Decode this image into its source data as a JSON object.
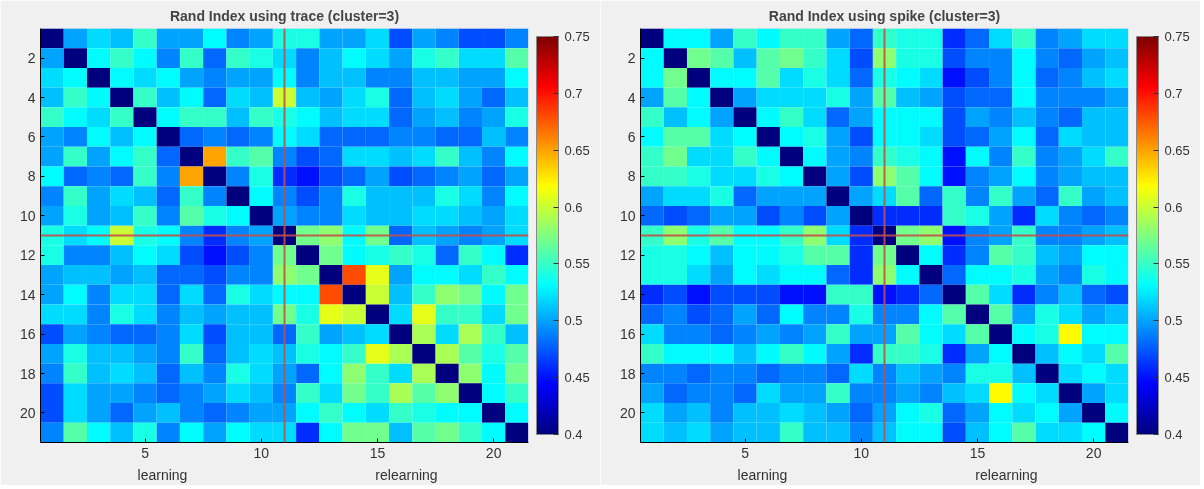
{
  "chart_data": [
    {
      "type": "heatmap",
      "title": "Rand Index using trace (cluster=3)",
      "categories": [
        null,
        null,
        null,
        null,
        "5",
        null,
        null,
        null,
        null,
        "10",
        null,
        null,
        null,
        null,
        "15",
        null,
        null,
        null,
        null,
        "20",
        null
      ],
      "y_categories": [
        null,
        "2",
        null,
        "4",
        null,
        "6",
        null,
        "8",
        null,
        "10",
        null,
        "12",
        null,
        "14",
        null,
        "16",
        null,
        "18",
        null,
        "20",
        null
      ],
      "clim": [
        0.4,
        0.75
      ],
      "cticks": [
        0.4,
        0.45,
        0.5,
        0.55,
        0.6,
        0.65,
        0.7,
        0.75
      ],
      "annotations": [
        "learning",
        "relearning"
      ],
      "cells": [
        [
          0.4,
          0.5,
          0.52,
          0.51,
          0.55,
          0.5,
          0.5,
          0.53,
          0.49,
          0.5,
          0.54,
          0.54,
          0.5,
          0.5,
          0.52,
          0.47,
          0.5,
          0.49,
          0.47,
          0.47,
          0.49
        ],
        [
          0.5,
          0.4,
          0.53,
          0.55,
          0.53,
          0.49,
          0.55,
          0.48,
          0.55,
          0.54,
          0.52,
          0.49,
          0.51,
          0.53,
          0.52,
          0.5,
          0.54,
          0.55,
          0.52,
          0.52,
          0.56
        ],
        [
          0.52,
          0.53,
          0.4,
          0.53,
          0.52,
          0.53,
          0.5,
          0.49,
          0.5,
          0.5,
          0.53,
          0.49,
          0.51,
          0.51,
          0.49,
          0.49,
          0.51,
          0.51,
          0.5,
          0.5,
          0.53
        ],
        [
          0.51,
          0.55,
          0.53,
          0.4,
          0.55,
          0.51,
          0.53,
          0.48,
          0.52,
          0.51,
          0.6,
          0.51,
          0.5,
          0.52,
          0.54,
          0.48,
          0.51,
          0.52,
          0.5,
          0.48,
          0.51
        ],
        [
          0.55,
          0.53,
          0.52,
          0.55,
          0.4,
          0.53,
          0.55,
          0.55,
          0.51,
          0.55,
          0.54,
          0.53,
          0.51,
          0.52,
          0.52,
          0.48,
          0.5,
          0.51,
          0.49,
          0.5,
          0.54
        ],
        [
          0.5,
          0.49,
          0.53,
          0.51,
          0.53,
          0.4,
          0.48,
          0.49,
          0.48,
          0.49,
          0.53,
          0.52,
          0.48,
          0.48,
          0.48,
          0.49,
          0.49,
          0.48,
          0.48,
          0.51,
          0.49
        ],
        [
          0.5,
          0.55,
          0.5,
          0.53,
          0.55,
          0.48,
          0.4,
          0.65,
          0.55,
          0.56,
          0.49,
          0.47,
          0.48,
          0.52,
          0.52,
          0.51,
          0.52,
          0.55,
          0.51,
          0.49,
          0.53
        ],
        [
          0.53,
          0.48,
          0.49,
          0.48,
          0.55,
          0.49,
          0.65,
          0.4,
          0.49,
          0.54,
          0.46,
          0.45,
          0.47,
          0.48,
          0.5,
          0.47,
          0.48,
          0.49,
          0.5,
          0.48,
          0.5
        ],
        [
          0.49,
          0.55,
          0.5,
          0.52,
          0.51,
          0.48,
          0.55,
          0.49,
          0.4,
          0.53,
          0.49,
          0.47,
          0.49,
          0.54,
          0.51,
          0.51,
          0.51,
          0.54,
          0.52,
          0.49,
          0.53
        ],
        [
          0.5,
          0.54,
          0.5,
          0.51,
          0.55,
          0.49,
          0.56,
          0.54,
          0.53,
          0.4,
          0.5,
          0.49,
          0.49,
          0.52,
          0.51,
          0.51,
          0.52,
          0.52,
          0.51,
          0.5,
          0.52
        ],
        [
          0.54,
          0.52,
          0.53,
          0.6,
          0.54,
          0.53,
          0.49,
          0.46,
          0.49,
          0.5,
          0.4,
          0.57,
          0.58,
          0.53,
          0.57,
          0.48,
          0.51,
          0.5,
          0.49,
          0.5,
          0.52
        ],
        [
          0.54,
          0.49,
          0.49,
          0.51,
          0.53,
          0.52,
          0.47,
          0.45,
          0.47,
          0.49,
          0.57,
          0.4,
          0.57,
          0.53,
          0.54,
          0.55,
          0.54,
          0.48,
          0.55,
          0.53,
          0.46
        ],
        [
          0.5,
          0.51,
          0.51,
          0.5,
          0.51,
          0.48,
          0.48,
          0.47,
          0.49,
          0.49,
          0.58,
          0.57,
          0.4,
          0.68,
          0.61,
          0.5,
          0.53,
          0.53,
          0.52,
          0.55,
          0.53
        ],
        [
          0.5,
          0.53,
          0.49,
          0.52,
          0.52,
          0.48,
          0.52,
          0.48,
          0.54,
          0.52,
          0.53,
          0.53,
          0.68,
          0.4,
          0.6,
          0.51,
          0.55,
          0.58,
          0.57,
          0.53,
          0.57
        ],
        [
          0.52,
          0.52,
          0.49,
          0.54,
          0.52,
          0.49,
          0.51,
          0.5,
          0.51,
          0.51,
          0.57,
          0.54,
          0.61,
          0.6,
          0.4,
          0.52,
          0.61,
          0.55,
          0.55,
          0.52,
          0.57
        ],
        [
          0.47,
          0.5,
          0.49,
          0.48,
          0.48,
          0.49,
          0.52,
          0.47,
          0.51,
          0.51,
          0.48,
          0.55,
          0.5,
          0.51,
          0.52,
          0.4,
          0.59,
          0.52,
          0.59,
          0.55,
          0.51
        ],
        [
          0.5,
          0.54,
          0.51,
          0.51,
          0.5,
          0.49,
          0.55,
          0.48,
          0.51,
          0.52,
          0.51,
          0.54,
          0.53,
          0.55,
          0.61,
          0.59,
          0.4,
          0.59,
          0.56,
          0.54,
          0.56
        ],
        [
          0.49,
          0.55,
          0.51,
          0.52,
          0.51,
          0.48,
          0.51,
          0.49,
          0.54,
          0.52,
          0.5,
          0.48,
          0.53,
          0.58,
          0.55,
          0.52,
          0.59,
          0.4,
          0.58,
          0.53,
          0.57
        ],
        [
          0.47,
          0.52,
          0.5,
          0.5,
          0.49,
          0.48,
          0.49,
          0.5,
          0.52,
          0.51,
          0.49,
          0.55,
          0.52,
          0.57,
          0.55,
          0.59,
          0.56,
          0.58,
          0.4,
          0.53,
          0.55
        ],
        [
          0.47,
          0.52,
          0.5,
          0.48,
          0.5,
          0.51,
          0.49,
          0.48,
          0.49,
          0.5,
          0.5,
          0.53,
          0.55,
          0.53,
          0.52,
          0.55,
          0.54,
          0.53,
          0.53,
          0.4,
          0.53
        ],
        [
          0.49,
          0.56,
          0.53,
          0.51,
          0.54,
          0.49,
          0.53,
          0.5,
          0.53,
          0.52,
          0.52,
          0.46,
          0.53,
          0.57,
          0.57,
          0.51,
          0.56,
          0.57,
          0.55,
          0.53,
          0.4
        ]
      ]
    },
    {
      "type": "heatmap",
      "title": "Rand Index using spike (cluster=3)",
      "categories": [
        null,
        null,
        null,
        null,
        "5",
        null,
        null,
        null,
        null,
        "10",
        null,
        null,
        null,
        null,
        "15",
        null,
        null,
        null,
        null,
        "20",
        null
      ],
      "y_categories": [
        null,
        "2",
        null,
        "4",
        null,
        "6",
        null,
        "8",
        null,
        "10",
        null,
        "12",
        null,
        "14",
        null,
        "16",
        null,
        "18",
        null,
        "20",
        null
      ],
      "clim": [
        0.4,
        0.75
      ],
      "cticks": [
        0.4,
        0.45,
        0.5,
        0.55,
        0.6,
        0.65,
        0.7,
        0.75
      ],
      "annotations": [
        "learning",
        "relearning"
      ],
      "cells": [
        [
          0.4,
          0.53,
          0.53,
          0.5,
          0.55,
          0.53,
          0.55,
          0.55,
          0.5,
          0.48,
          0.55,
          0.54,
          0.54,
          0.46,
          0.48,
          0.52,
          0.55,
          0.49,
          0.5,
          0.52,
          0.52
        ],
        [
          0.53,
          0.4,
          0.57,
          0.56,
          0.51,
          0.56,
          0.57,
          0.55,
          0.52,
          0.47,
          0.58,
          0.54,
          0.54,
          0.47,
          0.49,
          0.49,
          0.53,
          0.49,
          0.48,
          0.5,
          0.51
        ],
        [
          0.53,
          0.57,
          0.4,
          0.53,
          0.53,
          0.56,
          0.52,
          0.54,
          0.52,
          0.48,
          0.54,
          0.53,
          0.52,
          0.45,
          0.47,
          0.49,
          0.53,
          0.48,
          0.49,
          0.51,
          0.52
        ],
        [
          0.5,
          0.56,
          0.53,
          0.4,
          0.5,
          0.52,
          0.52,
          0.52,
          0.54,
          0.5,
          0.56,
          0.51,
          0.5,
          0.47,
          0.48,
          0.48,
          0.53,
          0.49,
          0.49,
          0.49,
          0.5
        ],
        [
          0.55,
          0.51,
          0.53,
          0.5,
          0.4,
          0.53,
          0.55,
          0.52,
          0.48,
          0.5,
          0.53,
          0.53,
          0.53,
          0.47,
          0.5,
          0.49,
          0.51,
          0.49,
          0.48,
          0.51,
          0.51
        ],
        [
          0.53,
          0.56,
          0.56,
          0.52,
          0.53,
          0.4,
          0.53,
          0.54,
          0.5,
          0.47,
          0.53,
          0.53,
          0.52,
          0.47,
          0.48,
          0.5,
          0.53,
          0.48,
          0.52,
          0.51,
          0.51
        ],
        [
          0.55,
          0.57,
          0.52,
          0.52,
          0.55,
          0.53,
          0.4,
          0.53,
          0.5,
          0.49,
          0.55,
          0.54,
          0.53,
          0.45,
          0.53,
          0.49,
          0.55,
          0.49,
          0.5,
          0.52,
          0.55
        ],
        [
          0.55,
          0.55,
          0.54,
          0.52,
          0.52,
          0.54,
          0.53,
          0.4,
          0.5,
          0.47,
          0.58,
          0.56,
          0.53,
          0.45,
          0.49,
          0.5,
          0.53,
          0.49,
          0.5,
          0.51,
          0.51
        ],
        [
          0.5,
          0.52,
          0.52,
          0.54,
          0.48,
          0.5,
          0.5,
          0.5,
          0.4,
          0.5,
          0.52,
          0.56,
          0.48,
          0.55,
          0.49,
          0.55,
          0.5,
          0.48,
          0.55,
          0.5,
          0.51
        ],
        [
          0.48,
          0.47,
          0.48,
          0.5,
          0.5,
          0.47,
          0.49,
          0.47,
          0.5,
          0.4,
          0.46,
          0.46,
          0.46,
          0.55,
          0.54,
          0.5,
          0.46,
          0.52,
          0.49,
          0.48,
          0.49
        ],
        [
          0.55,
          0.58,
          0.54,
          0.56,
          0.53,
          0.53,
          0.55,
          0.58,
          0.52,
          0.46,
          0.4,
          0.57,
          0.58,
          0.45,
          0.49,
          0.5,
          0.55,
          0.49,
          0.49,
          0.5,
          0.51
        ],
        [
          0.54,
          0.54,
          0.53,
          0.51,
          0.53,
          0.53,
          0.54,
          0.56,
          0.56,
          0.46,
          0.57,
          0.4,
          0.53,
          0.46,
          0.49,
          0.56,
          0.55,
          0.51,
          0.5,
          0.53,
          0.53
        ],
        [
          0.54,
          0.54,
          0.52,
          0.5,
          0.53,
          0.52,
          0.53,
          0.53,
          0.48,
          0.46,
          0.58,
          0.53,
          0.4,
          0.48,
          0.53,
          0.53,
          0.54,
          0.5,
          0.49,
          0.54,
          0.53
        ],
        [
          0.46,
          0.47,
          0.45,
          0.47,
          0.47,
          0.47,
          0.45,
          0.45,
          0.55,
          0.55,
          0.45,
          0.46,
          0.48,
          0.4,
          0.56,
          0.52,
          0.46,
          0.49,
          0.51,
          0.48,
          0.47
        ],
        [
          0.48,
          0.49,
          0.47,
          0.48,
          0.5,
          0.48,
          0.53,
          0.49,
          0.49,
          0.54,
          0.49,
          0.49,
          0.53,
          0.56,
          0.4,
          0.56,
          0.5,
          0.54,
          0.52,
          0.5,
          0.51
        ],
        [
          0.52,
          0.49,
          0.49,
          0.48,
          0.49,
          0.5,
          0.49,
          0.5,
          0.55,
          0.5,
          0.5,
          0.56,
          0.53,
          0.52,
          0.56,
          0.4,
          0.53,
          0.54,
          0.62,
          0.53,
          0.53
        ],
        [
          0.55,
          0.53,
          0.53,
          0.53,
          0.51,
          0.53,
          0.55,
          0.53,
          0.5,
          0.46,
          0.55,
          0.55,
          0.54,
          0.46,
          0.5,
          0.53,
          0.4,
          0.51,
          0.53,
          0.52,
          0.56
        ],
        [
          0.49,
          0.49,
          0.48,
          0.49,
          0.49,
          0.48,
          0.49,
          0.49,
          0.48,
          0.52,
          0.49,
          0.51,
          0.5,
          0.49,
          0.54,
          0.54,
          0.51,
          0.4,
          0.52,
          0.53,
          0.52
        ],
        [
          0.5,
          0.48,
          0.49,
          0.49,
          0.48,
          0.52,
          0.5,
          0.5,
          0.55,
          0.49,
          0.49,
          0.5,
          0.49,
          0.51,
          0.52,
          0.62,
          0.53,
          0.52,
          0.4,
          0.5,
          0.52
        ],
        [
          0.52,
          0.5,
          0.51,
          0.49,
          0.51,
          0.51,
          0.52,
          0.51,
          0.5,
          0.48,
          0.5,
          0.53,
          0.54,
          0.48,
          0.5,
          0.53,
          0.52,
          0.53,
          0.5,
          0.4,
          0.53
        ],
        [
          0.52,
          0.51,
          0.52,
          0.5,
          0.51,
          0.51,
          0.55,
          0.51,
          0.51,
          0.49,
          0.51,
          0.53,
          0.53,
          0.47,
          0.51,
          0.53,
          0.56,
          0.52,
          0.52,
          0.53,
          0.4
        ]
      ]
    }
  ]
}
